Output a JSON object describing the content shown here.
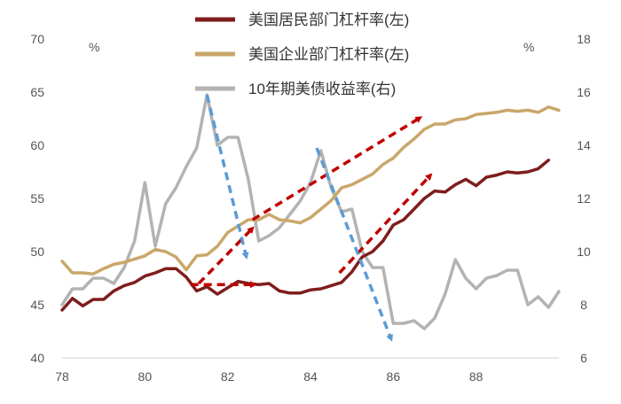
{
  "chart_data": {
    "type": "line",
    "title": "",
    "left_unit": "%",
    "right_unit": "%",
    "x_ticks": [
      "78",
      "80",
      "82",
      "84",
      "86",
      "88"
    ],
    "x_range": [
      1978,
      1990
    ],
    "left_axis": {
      "ylim": [
        40,
        70
      ],
      "ticks": [
        "40",
        "45",
        "50",
        "55",
        "60",
        "65",
        "70"
      ]
    },
    "right_axis": {
      "ylim": [
        6,
        18
      ],
      "ticks": [
        "6",
        "8",
        "10",
        "12",
        "14",
        "16",
        "18"
      ]
    },
    "grid": false,
    "legend_position": "top",
    "series": [
      {
        "name": "美国居民部门杠杆率(左)",
        "axis": "left",
        "color": "#7f1d1d",
        "points": [
          [
            1978.0,
            44.5
          ],
          [
            1978.25,
            45.6
          ],
          [
            1978.5,
            44.9
          ],
          [
            1978.75,
            45.5
          ],
          [
            1979.0,
            45.5
          ],
          [
            1979.25,
            46.3
          ],
          [
            1979.5,
            46.8
          ],
          [
            1979.75,
            47.1
          ],
          [
            1980.0,
            47.7
          ],
          [
            1980.25,
            48.0
          ],
          [
            1980.5,
            48.4
          ],
          [
            1980.75,
            48.4
          ],
          [
            1981.0,
            47.6
          ],
          [
            1981.25,
            46.3
          ],
          [
            1981.5,
            46.7
          ],
          [
            1981.75,
            46.0
          ],
          [
            1982.0,
            46.6
          ],
          [
            1982.25,
            47.2
          ],
          [
            1982.5,
            47.0
          ],
          [
            1982.75,
            46.9
          ],
          [
            1983.0,
            47.0
          ],
          [
            1983.25,
            46.3
          ],
          [
            1983.5,
            46.1
          ],
          [
            1983.75,
            46.1
          ],
          [
            1984.0,
            46.4
          ],
          [
            1984.25,
            46.5
          ],
          [
            1984.5,
            46.8
          ],
          [
            1984.75,
            47.1
          ],
          [
            1985.0,
            48.1
          ],
          [
            1985.25,
            49.5
          ],
          [
            1985.5,
            50.0
          ],
          [
            1985.75,
            51.0
          ],
          [
            1986.0,
            52.5
          ],
          [
            1986.25,
            53.0
          ],
          [
            1986.5,
            54.0
          ],
          [
            1986.75,
            55.0
          ],
          [
            1987.0,
            55.7
          ],
          [
            1987.25,
            55.6
          ],
          [
            1987.5,
            56.3
          ],
          [
            1987.75,
            56.8
          ],
          [
            1988.0,
            56.2
          ],
          [
            1988.25,
            57.0
          ],
          [
            1988.5,
            57.2
          ],
          [
            1988.75,
            57.5
          ],
          [
            1989.0,
            57.4
          ],
          [
            1989.25,
            57.5
          ],
          [
            1989.5,
            57.8
          ],
          [
            1989.75,
            58.6
          ]
        ]
      },
      {
        "name": "美国企业部门杠杆率(左)",
        "axis": "left",
        "color": "#c9a76a",
        "points": [
          [
            1978.0,
            49.1
          ],
          [
            1978.25,
            48.0
          ],
          [
            1978.5,
            48.0
          ],
          [
            1978.75,
            47.9
          ],
          [
            1979.0,
            48.4
          ],
          [
            1979.25,
            48.8
          ],
          [
            1979.5,
            49.0
          ],
          [
            1979.75,
            49.3
          ],
          [
            1980.0,
            49.6
          ],
          [
            1980.25,
            50.2
          ],
          [
            1980.5,
            50.0
          ],
          [
            1980.75,
            49.5
          ],
          [
            1981.0,
            48.3
          ],
          [
            1981.25,
            49.6
          ],
          [
            1981.5,
            49.7
          ],
          [
            1981.75,
            50.5
          ],
          [
            1982.0,
            51.8
          ],
          [
            1982.25,
            52.4
          ],
          [
            1982.5,
            53.0
          ],
          [
            1982.75,
            53.0
          ],
          [
            1983.0,
            53.5
          ],
          [
            1983.25,
            53.0
          ],
          [
            1983.5,
            52.9
          ],
          [
            1983.75,
            52.7
          ],
          [
            1984.0,
            53.2
          ],
          [
            1984.25,
            54.0
          ],
          [
            1984.5,
            54.8
          ],
          [
            1984.75,
            56.0
          ],
          [
            1985.0,
            56.3
          ],
          [
            1985.25,
            56.8
          ],
          [
            1985.5,
            57.3
          ],
          [
            1985.75,
            58.2
          ],
          [
            1986.0,
            58.8
          ],
          [
            1986.25,
            59.8
          ],
          [
            1986.5,
            60.6
          ],
          [
            1986.75,
            61.5
          ],
          [
            1987.0,
            62.0
          ],
          [
            1987.25,
            62.0
          ],
          [
            1987.5,
            62.4
          ],
          [
            1987.75,
            62.5
          ],
          [
            1988.0,
            62.9
          ],
          [
            1988.25,
            63.0
          ],
          [
            1988.5,
            63.1
          ],
          [
            1988.75,
            63.3
          ],
          [
            1989.0,
            63.2
          ],
          [
            1989.25,
            63.3
          ],
          [
            1989.5,
            63.1
          ],
          [
            1989.75,
            63.6
          ],
          [
            1990.0,
            63.3
          ]
        ]
      },
      {
        "name": "10年期美债收益率(右)",
        "axis": "right",
        "color": "#b3b3b3",
        "points": [
          [
            1978.0,
            8.0
          ],
          [
            1978.25,
            8.6
          ],
          [
            1978.5,
            8.6
          ],
          [
            1978.75,
            9.0
          ],
          [
            1979.0,
            9.0
          ],
          [
            1979.25,
            8.8
          ],
          [
            1979.5,
            9.4
          ],
          [
            1979.75,
            10.4
          ],
          [
            1980.0,
            12.6
          ],
          [
            1980.25,
            10.2
          ],
          [
            1980.5,
            11.8
          ],
          [
            1980.75,
            12.4
          ],
          [
            1981.0,
            13.2
          ],
          [
            1981.25,
            13.9
          ],
          [
            1981.5,
            15.9
          ],
          [
            1981.75,
            14.0
          ],
          [
            1982.0,
            14.3
          ],
          [
            1982.25,
            14.3
          ],
          [
            1982.5,
            12.7
          ],
          [
            1982.75,
            10.4
          ],
          [
            1983.0,
            10.6
          ],
          [
            1983.25,
            10.9
          ],
          [
            1983.5,
            11.4
          ],
          [
            1983.75,
            11.9
          ],
          [
            1984.0,
            12.6
          ],
          [
            1984.25,
            13.8
          ],
          [
            1984.5,
            12.4
          ],
          [
            1984.75,
            11.5
          ],
          [
            1985.0,
            11.6
          ],
          [
            1985.25,
            10.0
          ],
          [
            1985.5,
            9.4
          ],
          [
            1985.75,
            9.4
          ],
          [
            1986.0,
            7.3
          ],
          [
            1986.25,
            7.3
          ],
          [
            1986.5,
            7.4
          ],
          [
            1986.75,
            7.1
          ],
          [
            1987.0,
            7.5
          ],
          [
            1987.25,
            8.4
          ],
          [
            1987.5,
            9.7
          ],
          [
            1987.75,
            9.0
          ],
          [
            1988.0,
            8.6
          ],
          [
            1988.25,
            9.0
          ],
          [
            1988.5,
            9.1
          ],
          [
            1988.75,
            9.3
          ],
          [
            1989.0,
            9.3
          ],
          [
            1989.25,
            8.0
          ],
          [
            1989.5,
            8.3
          ],
          [
            1989.75,
            7.9
          ],
          [
            1990.0,
            8.5
          ]
        ]
      }
    ],
    "annotations": [
      {
        "type": "dashed-arrow",
        "color": "#c00000",
        "from": [
          1981.3,
          47.0
        ],
        "to": [
          1982.6,
          52.2
        ],
        "axis": "left"
      },
      {
        "type": "dashed-arrow",
        "color": "#c00000",
        "from": [
          1981.1,
          46.9
        ],
        "to": [
          1982.65,
          46.9
        ],
        "axis": "left"
      },
      {
        "type": "dashed-arrow",
        "color": "#c00000",
        "from": [
          1982.6,
          53.0
        ],
        "to": [
          1986.65,
          62.6
        ],
        "axis": "left"
      },
      {
        "type": "dashed-arrow",
        "color": "#c00000",
        "from": [
          1984.7,
          48.0
        ],
        "to": [
          1986.9,
          57.2
        ],
        "axis": "left"
      },
      {
        "type": "dashed-arrow",
        "color": "#5b9bd5",
        "from": [
          1981.5,
          15.9
        ],
        "to": [
          1982.45,
          9.8
        ],
        "axis": "right"
      },
      {
        "type": "dashed-arrow",
        "color": "#5b9bd5",
        "from": [
          1984.15,
          13.9
        ],
        "to": [
          1985.95,
          6.7
        ],
        "axis": "right"
      }
    ]
  }
}
